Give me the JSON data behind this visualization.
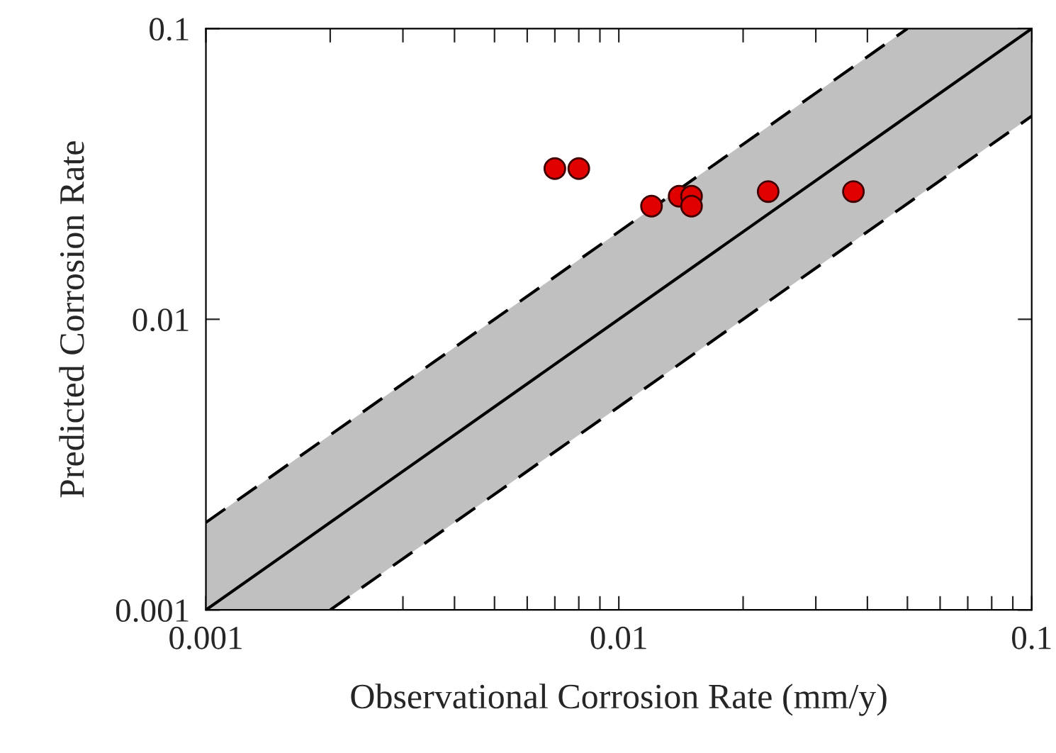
{
  "chart_data": {
    "type": "scatter",
    "xlabel": "Observational Corrosion Rate (mm/y)",
    "ylabel": "Predicted Corrosion Rate",
    "log": "xy",
    "xlim": [
      0.001,
      0.1
    ],
    "ylim": [
      0.001,
      0.1
    ],
    "xticks": [
      0.001,
      {
        "value": 0.002,
        "label": null
      },
      {
        "value": 0.003,
        "label": null
      },
      {
        "value": 0.004,
        "label": null
      },
      {
        "value": 0.005,
        "label": null
      },
      {
        "value": 0.006,
        "label": null
      },
      {
        "value": 0.007,
        "label": null
      },
      {
        "value": 0.008,
        "label": null
      },
      {
        "value": 0.009,
        "label": null
      },
      0.01,
      {
        "value": 0.02,
        "label": null
      },
      {
        "value": 0.03,
        "label": null
      },
      {
        "value": 0.04,
        "label": null
      },
      {
        "value": 0.05,
        "label": null
      },
      {
        "value": 0.06,
        "label": null
      },
      {
        "value": 0.07,
        "label": null
      },
      {
        "value": 0.08,
        "label": null
      },
      {
        "value": 0.09,
        "label": null
      },
      0.1
    ],
    "yticks": [
      0.001,
      0.01,
      0.1
    ],
    "grid": false,
    "legend": false,
    "series": [
      {
        "type": "line",
        "color": "#000000",
        "line_style": "solid",
        "x": [
          0.001,
          0.002,
          0.05,
          0.1
        ],
        "values": [
          0.001,
          0.002,
          0.05,
          0.1
        ],
        "lower": [
          0.001,
          0.001,
          0.025,
          0.05
        ],
        "upper": [
          0.002,
          0.004,
          0.1,
          0.1
        ]
      },
      {
        "type": "line",
        "color": "#000000",
        "line_style": "dashed",
        "x": [
          0.001,
          0.05
        ],
        "values": [
          0.002,
          0.1
        ]
      },
      {
        "type": "line",
        "color": "#000000",
        "line_style": "dashed",
        "x": [
          0.002,
          0.1
        ],
        "values": [
          0.001,
          0.05
        ]
      },
      {
        "marker": "circle",
        "color": "#e00000",
        "x": [
          0.007,
          0.008,
          0.012,
          0.014,
          0.015,
          0.015,
          0.023,
          0.037
        ],
        "values": [
          0.033,
          0.033,
          0.0245,
          0.0265,
          0.0265,
          0.0245,
          0.0275,
          0.0275
        ]
      }
    ]
  }
}
